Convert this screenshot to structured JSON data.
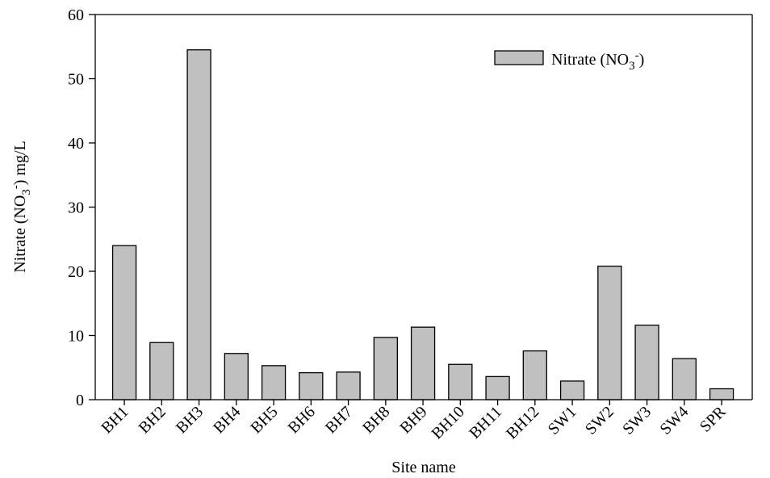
{
  "colors": {
    "bar_fill": "#c0c0c0",
    "bar_stroke": "#000000",
    "axis": "#000000",
    "background": "#ffffff"
  },
  "chart_data": {
    "type": "bar",
    "title": "",
    "xlabel": "Site name",
    "ylabel": {
      "prefix": "Nitrate (NO",
      "subscript": "3",
      "superscript": "-",
      "suffix": ") mg/L"
    },
    "ylim": [
      0,
      60
    ],
    "yticks": [
      "0",
      "10",
      "20",
      "30",
      "40",
      "50",
      "60"
    ],
    "grid": false,
    "legend_position": "top-right",
    "categories": [
      "BH1",
      "BH2",
      "BH3",
      "BH4",
      "BH5",
      "BH6",
      "BH7",
      "BH8",
      "BH9",
      "BH10",
      "BH11",
      "BH12",
      "SW1",
      "SW2",
      "SW3",
      "SW4",
      "SPR"
    ],
    "series": [
      {
        "name": {
          "prefix": "Nitrate (NO",
          "subscript": "3",
          "superscript": "-",
          "suffix": ")"
        },
        "values": [
          24.0,
          8.9,
          54.5,
          7.2,
          5.3,
          4.2,
          4.3,
          9.7,
          11.3,
          5.5,
          3.6,
          7.6,
          2.9,
          20.8,
          11.6,
          6.4,
          1.7
        ]
      }
    ]
  }
}
